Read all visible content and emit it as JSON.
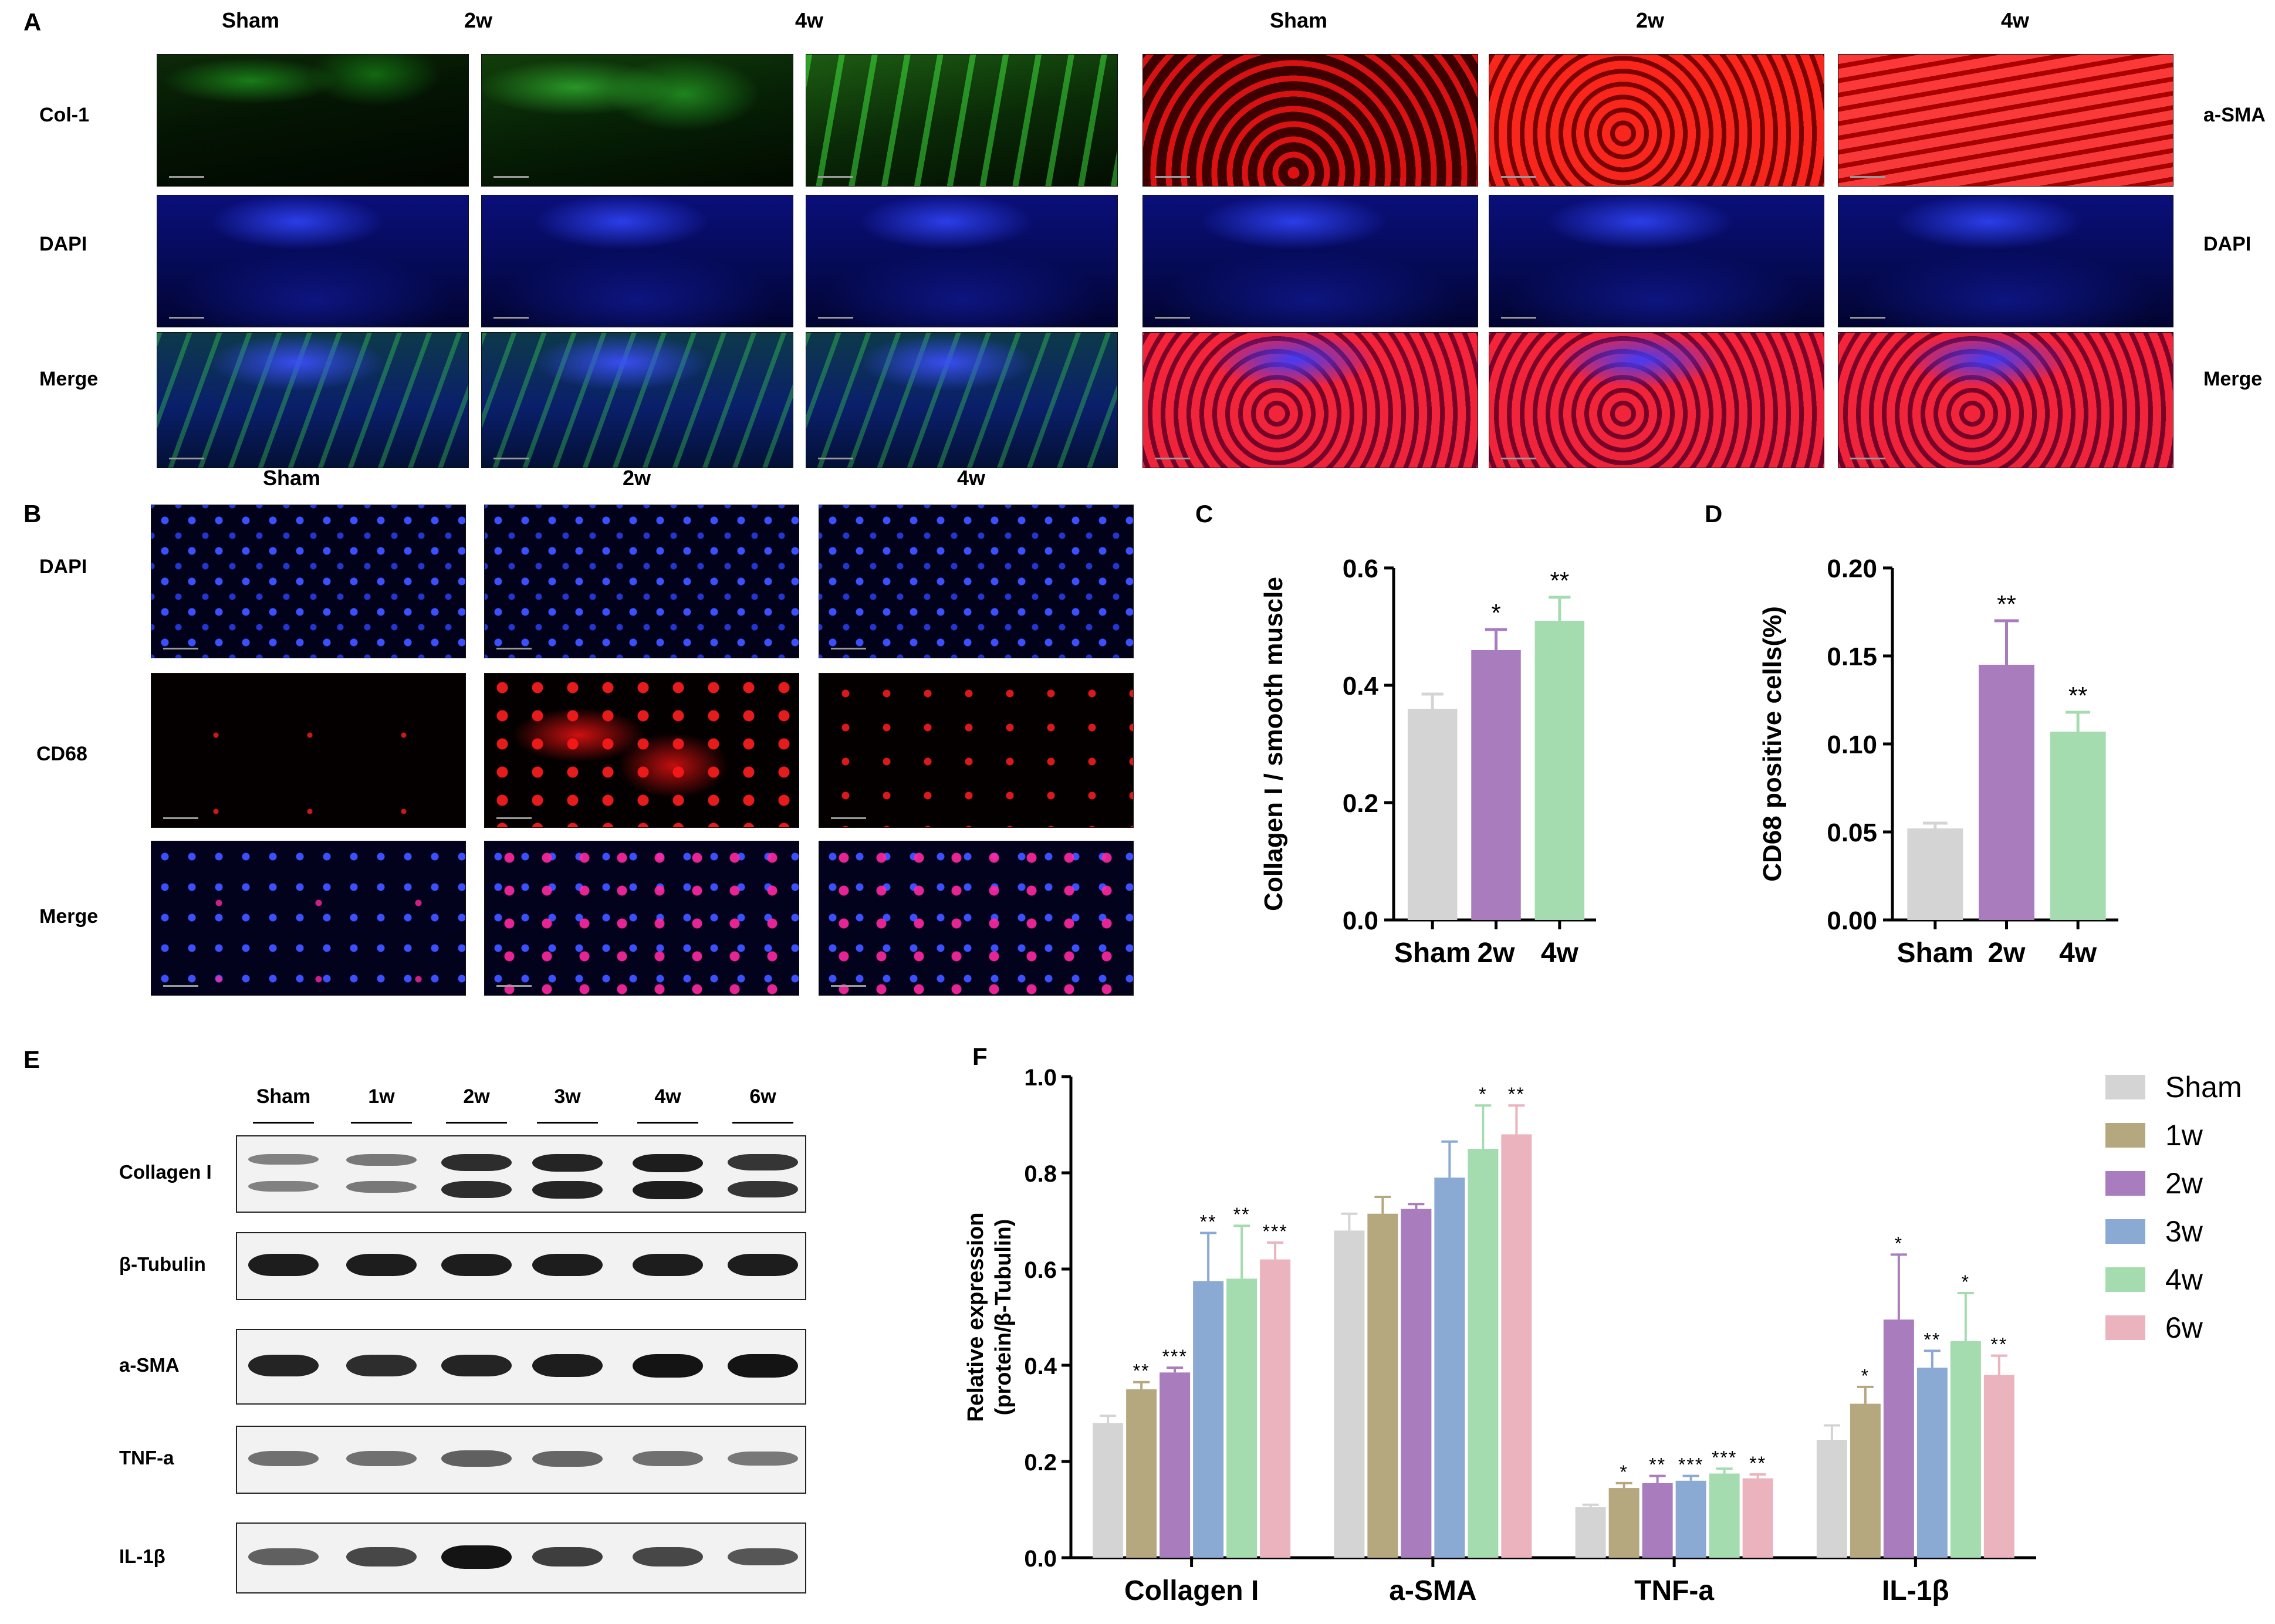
{
  "panel_a": {
    "letter": "A",
    "left_cols": [
      "Sham",
      "2w",
      "4w"
    ],
    "right_cols": [
      "Sham",
      "2w",
      "4w"
    ],
    "left_rows": [
      "Col-1",
      "DAPI",
      "Merge"
    ],
    "right_rows": [
      "a-SMA",
      "DAPI",
      "Merge"
    ]
  },
  "panel_b": {
    "letter": "B",
    "cols": [
      "Sham",
      "2w",
      "4w"
    ],
    "rows": [
      "DAPI",
      "CD68",
      "Merge"
    ]
  },
  "panel_e": {
    "letter": "E",
    "lanes": [
      "Sham",
      "1w",
      "2w",
      "3w",
      "4w",
      "6w"
    ],
    "blots": [
      {
        "name": "Collagen I",
        "intensity": [
          0.35,
          0.4,
          0.85,
          0.9,
          0.95,
          0.8
        ]
      },
      {
        "name": "β-Tubulin",
        "intensity": [
          0.95,
          0.95,
          0.95,
          0.95,
          0.95,
          0.95
        ]
      },
      {
        "name": "a-SMA",
        "intensity": [
          0.9,
          0.85,
          0.9,
          0.95,
          1.0,
          1.0
        ]
      },
      {
        "name": "TNF-a",
        "intensity": [
          0.45,
          0.45,
          0.55,
          0.5,
          0.45,
          0.4
        ]
      },
      {
        "name": "IL-1β",
        "intensity": [
          0.55,
          0.7,
          1.0,
          0.75,
          0.7,
          0.6
        ]
      }
    ]
  },
  "chart_data": [
    {
      "id": "C",
      "type": "bar",
      "categories": [
        "Sham",
        "2w",
        "4w"
      ],
      "values": [
        0.36,
        0.46,
        0.51
      ],
      "errors": [
        0.025,
        0.035,
        0.04
      ],
      "significance": [
        "",
        "*",
        "**"
      ],
      "colors": [
        "#d4d4d4",
        "#a97dbd",
        "#a4dcb0"
      ],
      "ylabel": "Collagen I / smooth muscle",
      "ylim": [
        0,
        0.6
      ],
      "yticks": [
        "0.0",
        "0.2",
        "0.4",
        "0.6"
      ]
    },
    {
      "id": "D",
      "type": "bar",
      "categories": [
        "Sham",
        "2w",
        "4w"
      ],
      "values": [
        0.052,
        0.145,
        0.107
      ],
      "errors": [
        0.003,
        0.025,
        0.011
      ],
      "significance": [
        "",
        "**",
        "**"
      ],
      "colors": [
        "#d4d4d4",
        "#a97dbd",
        "#a4dcb0"
      ],
      "ylabel": "CD68 positive cells(%)",
      "ylim": [
        0,
        0.2
      ],
      "yticks": [
        "0.00",
        "0.05",
        "0.10",
        "0.15",
        "0.20"
      ]
    },
    {
      "id": "F",
      "type": "bar",
      "categories": [
        "Collagen I",
        "a-SMA",
        "TNF-a",
        "IL-1β"
      ],
      "series": [
        {
          "name": "Sham",
          "color": "#d4d4d4",
          "values": [
            0.28,
            0.68,
            0.105,
            0.245
          ],
          "errors": [
            0.015,
            0.035,
            0.005,
            0.03
          ],
          "significance": [
            "",
            "",
            "",
            ""
          ]
        },
        {
          "name": "1w",
          "color": "#b5a77e",
          "values": [
            0.35,
            0.715,
            0.145,
            0.32
          ],
          "errors": [
            0.015,
            0.035,
            0.01,
            0.035
          ],
          "significance": [
            "**",
            "",
            "*",
            "*"
          ]
        },
        {
          "name": "2w",
          "color": "#a97dbd",
          "values": [
            0.385,
            0.725,
            0.155,
            0.495
          ],
          "errors": [
            0.01,
            0.01,
            0.015,
            0.135
          ],
          "significance": [
            "***",
            "",
            "**",
            "*"
          ]
        },
        {
          "name": "3w",
          "color": "#8aa9d3",
          "values": [
            0.575,
            0.79,
            0.16,
            0.395
          ],
          "errors": [
            0.1,
            0.075,
            0.01,
            0.035
          ],
          "significance": [
            "**",
            "",
            "***",
            "**"
          ]
        },
        {
          "name": "4w",
          "color": "#a4dcb0",
          "values": [
            0.58,
            0.85,
            0.175,
            0.45
          ],
          "errors": [
            0.11,
            0.09,
            0.01,
            0.1
          ],
          "significance": [
            "**",
            "*",
            "***",
            "*"
          ]
        },
        {
          "name": "6w",
          "color": "#eab3bd",
          "values": [
            0.62,
            0.88,
            0.165,
            0.38
          ],
          "errors": [
            0.035,
            0.06,
            0.008,
            0.04
          ],
          "significance": [
            "***",
            "**",
            "**",
            "**"
          ]
        }
      ],
      "ylabel_line1": "Relative expression",
      "ylabel_line2": "(protein/β-Tubulin)",
      "ylim": [
        0,
        1.0
      ],
      "yticks": [
        "0.0",
        "0.2",
        "0.4",
        "0.6",
        "0.8",
        "1.0"
      ],
      "legend_position": "right"
    }
  ]
}
